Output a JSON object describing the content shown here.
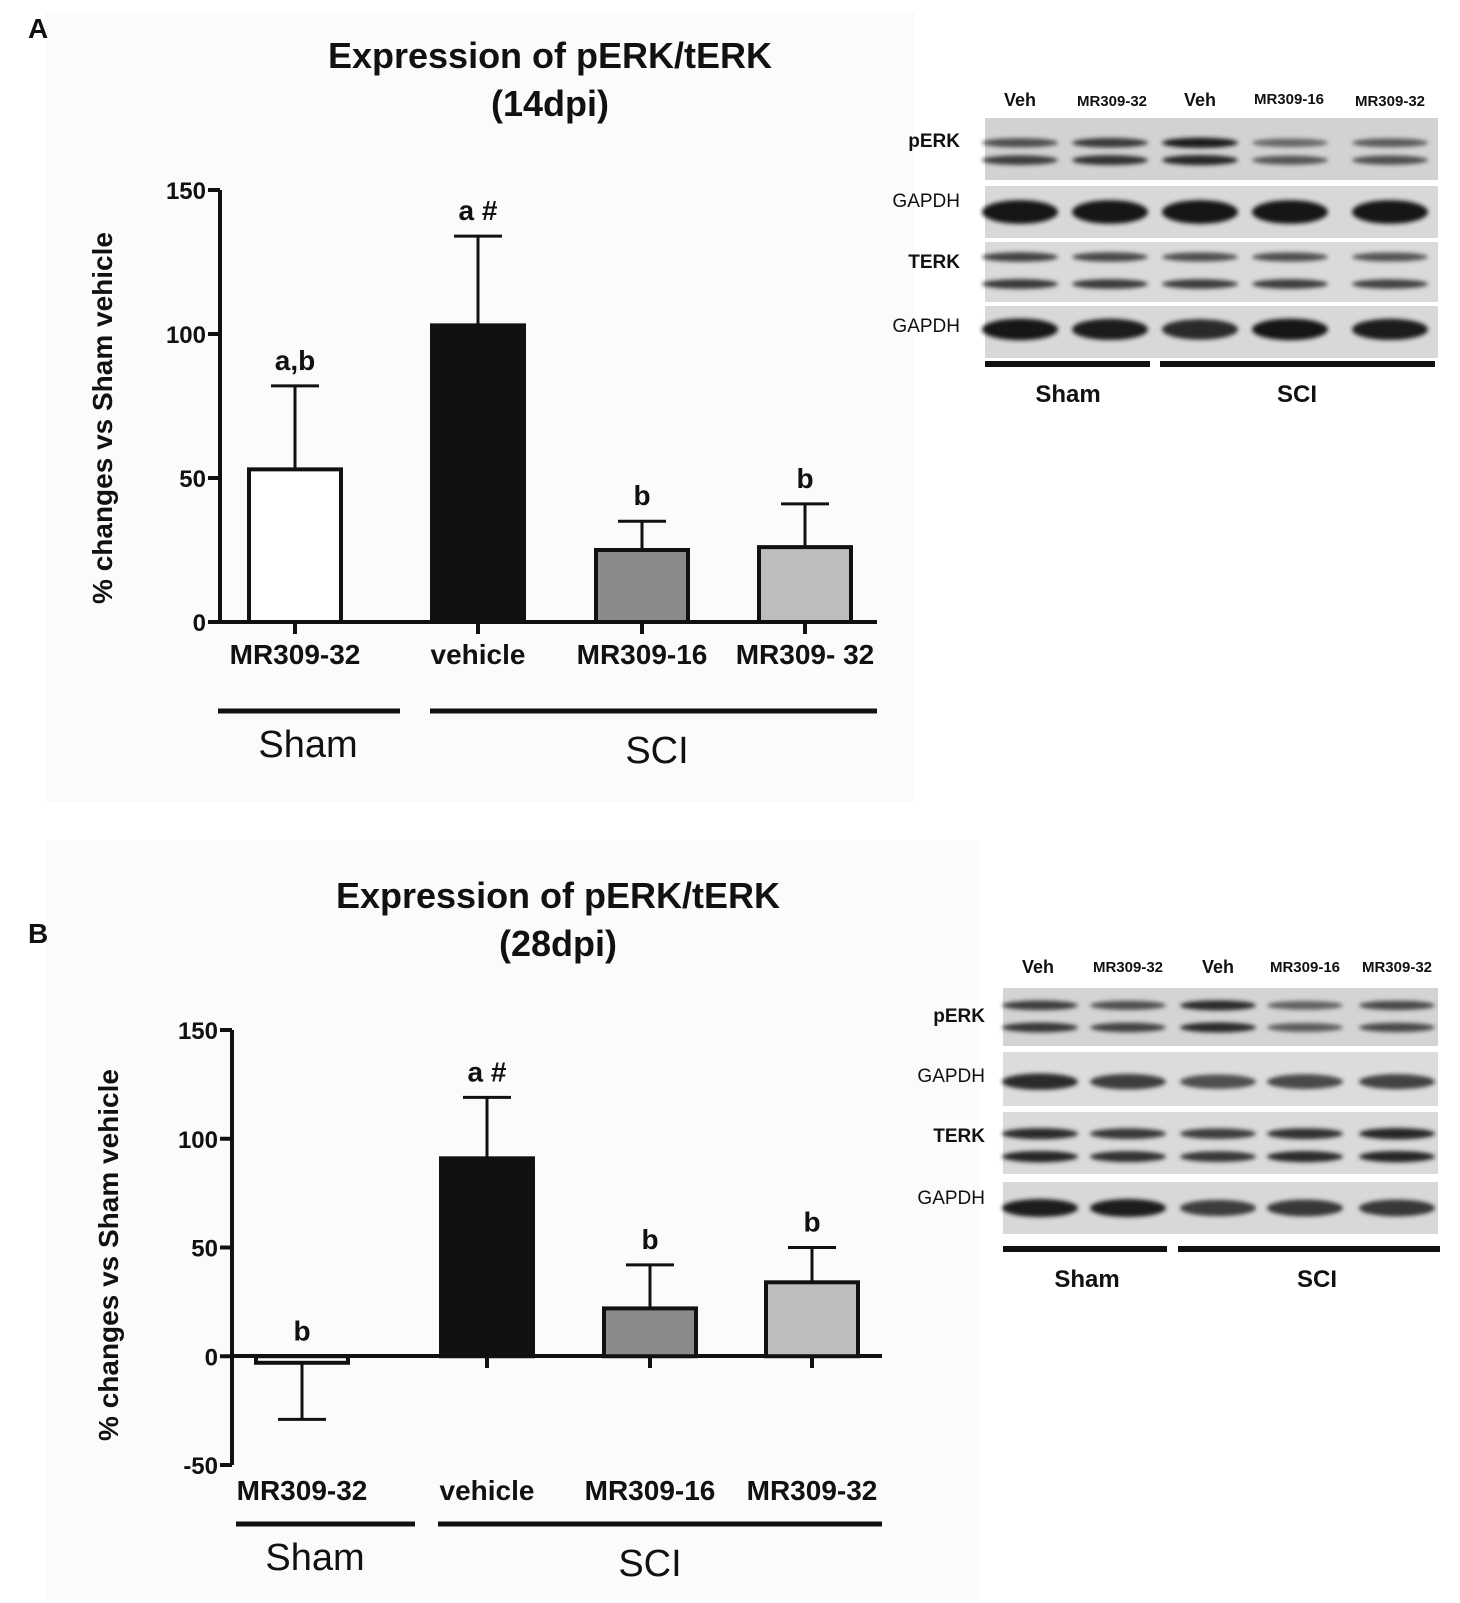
{
  "chart_data": [
    {
      "panel": "A",
      "type": "bar",
      "title": "Expression of pERK/tERK",
      "subtitle": "(14dpi)",
      "ylabel": "% changes vs Sham vehicle",
      "ylim": [
        0,
        150
      ],
      "yticks": [
        0,
        50,
        100,
        150
      ],
      "categories": [
        "MR309-32",
        "vehicle",
        "MR309-16",
        "MR309- 32"
      ],
      "groups": [
        {
          "label": "Sham",
          "categories": [
            0
          ]
        },
        {
          "label": "SCI",
          "categories": [
            1,
            2,
            3
          ]
        }
      ],
      "values": [
        53,
        103,
        25,
        26
      ],
      "errors": [
        29,
        31,
        10,
        15
      ],
      "annotations": [
        "a,b",
        "a #",
        "b",
        "b"
      ],
      "bar_colors": [
        "#ffffff",
        "#111111",
        "#8a8a8a",
        "#bdbdbd"
      ]
    },
    {
      "panel": "B",
      "type": "bar",
      "title": "Expression of pERK/tERK",
      "subtitle": "(28dpi)",
      "ylabel": "% changes vs Sham vehicle",
      "ylim": [
        -50,
        150
      ],
      "yticks": [
        -50,
        0,
        50,
        100,
        150
      ],
      "categories": [
        "MR309-32",
        "vehicle",
        "MR309-16",
        "MR309-32"
      ],
      "groups": [
        {
          "label": "Sham",
          "categories": [
            0
          ]
        },
        {
          "label": "SCI",
          "categories": [
            1,
            2,
            3
          ]
        }
      ],
      "values": [
        -3,
        91,
        22,
        34
      ],
      "errors": [
        26,
        28,
        20,
        16
      ],
      "annotations": [
        "b",
        "a #",
        "b",
        "b"
      ],
      "bar_colors": [
        "#ffffff",
        "#111111",
        "#8a8a8a",
        "#bdbdbd"
      ]
    }
  ],
  "blots": [
    {
      "panel": "A",
      "lanes": [
        "Veh",
        "MR309-32",
        "Veh",
        "MR309-16",
        "MR309-32"
      ],
      "rows": [
        "pERK",
        "GAPDH",
        "TERK",
        "GAPDH"
      ],
      "groups": [
        "Sham",
        "SCI"
      ]
    },
    {
      "panel": "B",
      "lanes": [
        "Veh",
        "MR309-32",
        "Veh",
        "MR309-16",
        "MR309-32"
      ],
      "rows": [
        "pERK",
        "GAPDH",
        "TERK",
        "GAPDH"
      ],
      "groups": [
        "Sham",
        "SCI"
      ]
    }
  ]
}
